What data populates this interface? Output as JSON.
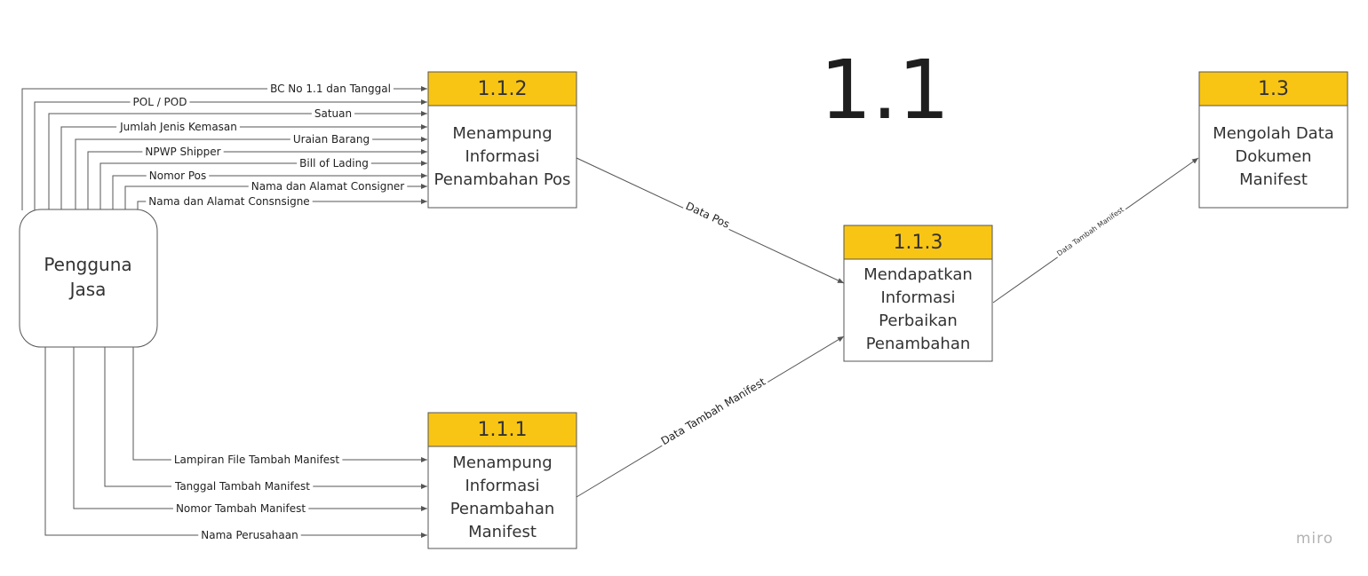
{
  "title": "1.1",
  "watermark": "miro",
  "entity": {
    "lines": [
      "Pengguna",
      "Jasa"
    ]
  },
  "processes": {
    "p112": {
      "id": "1.1.2",
      "lines": [
        "Menampung",
        "Informasi",
        "Penambahan Pos"
      ]
    },
    "p111": {
      "id": "1.1.1",
      "lines": [
        "Menampung",
        "Informasi",
        "Penambahan",
        "Manifest"
      ]
    },
    "p113": {
      "id": "1.1.3",
      "lines": [
        "Mendapatkan",
        "Informasi",
        "Perbaikan",
        "Penambahan"
      ]
    },
    "p13": {
      "id": "1.3",
      "lines": [
        "Mengolah Data",
        "Dokumen",
        "Manifest"
      ]
    }
  },
  "flows_to_112": [
    "BC No 1.1 dan Tanggal",
    "POL / POD",
    "Satuan",
    "Jumlah Jenis Kemasan",
    "Uraian Barang",
    "NPWP Shipper",
    "Bill of Lading",
    "Nomor Pos",
    "Nama dan Alamat Consigner",
    "Nama dan Alamat Consnsigne"
  ],
  "flows_to_111": [
    "Lampiran File Tambah Manifest",
    "Tanggal Tambah Manifest",
    "Nomor Tambah Manifest",
    "Nama Perusahaan"
  ],
  "flow_112_113": "Data Pos",
  "flow_111_113": "Data Tambah Manifest",
  "flow_113_13": "Data Tambah Manifest",
  "colors": {
    "header": "#f9c514",
    "stroke": "#555555",
    "text": "#333333"
  }
}
